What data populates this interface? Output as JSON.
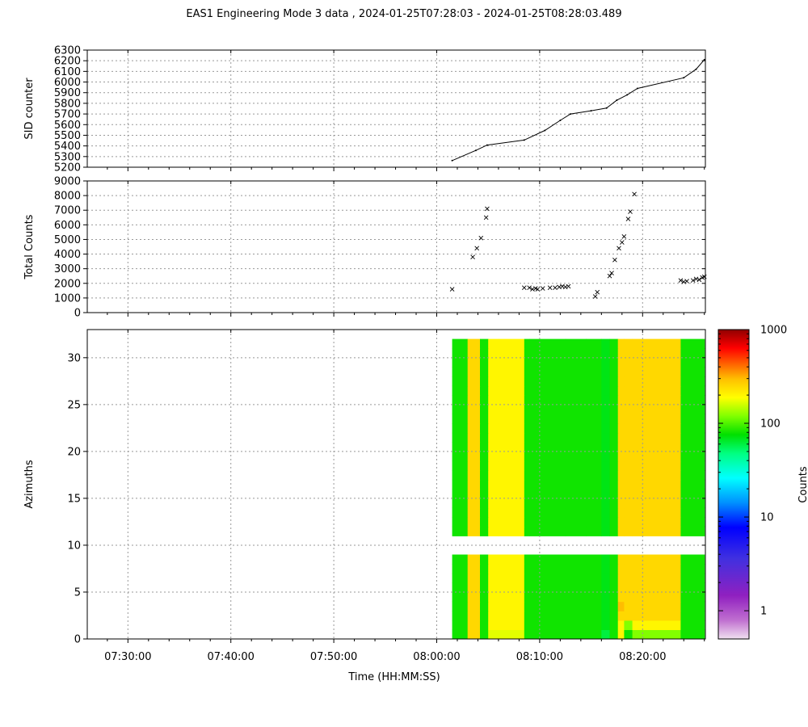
{
  "title": "EAS1  Engineering Mode 3 data ,  2024-01-25T07:28:03 - 2024-01-25T08:28:03.489",
  "xlabel": "Time (HH:MM:SS)",
  "x_ticks": [
    "07:30:00",
    "07:40:00",
    "07:50:00",
    "08:00:00",
    "08:10:00",
    "08:20:00"
  ],
  "colors": {
    "line": "#000000",
    "grid": "#999999",
    "no_data": "#ffffff"
  },
  "colorbar": {
    "label": "Counts",
    "scale": "log",
    "range": [
      0.5,
      1000
    ],
    "tick_labels": [
      "1",
      "10",
      "100",
      "1000"
    ],
    "tick_values": [
      1,
      10,
      100,
      1000
    ],
    "stops": [
      [
        "#f0e0f0",
        0.0
      ],
      [
        "#c070d0",
        0.06
      ],
      [
        "#9020c0",
        0.14
      ],
      [
        "#4030e0",
        0.26
      ],
      [
        "#0000ff",
        0.36
      ],
      [
        "#0090ff",
        0.44
      ],
      [
        "#00ffff",
        0.52
      ],
      [
        "#00ff80",
        0.6
      ],
      [
        "#00e000",
        0.66
      ],
      [
        "#80ff00",
        0.72
      ],
      [
        "#ffff00",
        0.78
      ],
      [
        "#ffc000",
        0.84
      ],
      [
        "#ff6000",
        0.89
      ],
      [
        "#ff0000",
        0.94
      ],
      [
        "#900000",
        1.0
      ]
    ]
  },
  "chart_data": [
    {
      "type": "line",
      "ylabel": "SID counter",
      "ylim": [
        5200,
        6300
      ],
      "xlim_minutes": [
        -1.95,
        58.1
      ],
      "y_ticks": [
        5200,
        5300,
        5400,
        5500,
        5600,
        5700,
        5800,
        5900,
        6000,
        6100,
        6200,
        6300
      ],
      "grid": true,
      "x_minutes": [
        33.5,
        35.8,
        36.9,
        40.5,
        42.5,
        44.0,
        45.0,
        47.0,
        48.5,
        49.5,
        50.5,
        51.5,
        56.0,
        57.2,
        58.0
      ],
      "values": [
        5262,
        5358,
        5408,
        5455,
        5545,
        5640,
        5700,
        5730,
        5755,
        5830,
        5880,
        5940,
        6040,
        6120,
        6210
      ]
    },
    {
      "type": "scatter",
      "ylabel": "Total Counts",
      "ylim": [
        0,
        9000
      ],
      "xlim_minutes": [
        -1.95,
        58.1
      ],
      "y_ticks": [
        0,
        1000,
        2000,
        3000,
        4000,
        5000,
        6000,
        7000,
        8000,
        9000
      ],
      "grid": true,
      "marker": "x",
      "x_minutes": [
        33.5,
        35.5,
        35.9,
        36.3,
        36.8,
        36.9,
        40.5,
        41.0,
        41.3,
        41.6,
        41.8,
        42.3,
        43.0,
        43.5,
        43.9,
        44.2,
        44.5,
        44.8,
        47.4,
        47.6,
        48.8,
        49.0,
        49.3,
        49.7,
        50.0,
        50.2,
        50.6,
        50.8,
        51.2,
        55.7,
        56.0,
        56.3,
        56.9,
        57.2,
        57.5,
        57.8,
        58.0
      ],
      "values": [
        1600,
        3800,
        4400,
        5100,
        6500,
        7100,
        1700,
        1700,
        1600,
        1650,
        1600,
        1650,
        1700,
        1700,
        1750,
        1800,
        1750,
        1800,
        1100,
        1400,
        2500,
        2700,
        3600,
        4400,
        4800,
        5200,
        6400,
        6900,
        8100,
        2200,
        2100,
        2150,
        2200,
        2300,
        2250,
        2400,
        2450
      ]
    },
    {
      "type": "heatmap",
      "ylabel": "Azimuths",
      "ylim": [
        0,
        33
      ],
      "xlim_minutes": [
        -1.95,
        58.1
      ],
      "y_ticks": [
        0,
        5,
        10,
        15,
        20,
        25,
        30
      ],
      "grid": true,
      "data_start_minute": 33.5,
      "data_end_minute": 58.0,
      "missing_azimuths": [
        9,
        10
      ],
      "color_scale": "log",
      "time_bins_minutes": [
        33.5,
        35.0,
        36.2,
        37.0,
        38.0,
        40.5,
        41.0,
        44.5,
        46.5,
        48.0,
        48.8,
        49.6,
        50.2,
        51.0,
        55.7,
        58.0
      ],
      "counts": [
        [
          80,
          250,
          80,
          170,
          170,
          80,
          80,
          80,
          80,
          60,
          80,
          200,
          80,
          120,
          80
        ],
        [
          80,
          250,
          80,
          200,
          200,
          80,
          80,
          80,
          80,
          70,
          80,
          200,
          120,
          200,
          80
        ],
        [
          80,
          250,
          80,
          200,
          200,
          80,
          80,
          80,
          80,
          70,
          80,
          250,
          250,
          250,
          80
        ],
        [
          80,
          250,
          80,
          200,
          200,
          80,
          80,
          80,
          80,
          70,
          80,
          300,
          250,
          250,
          80
        ],
        [
          80,
          250,
          80,
          200,
          200,
          80,
          80,
          80,
          80,
          70,
          80,
          250,
          250,
          250,
          80
        ],
        [
          80,
          250,
          80,
          200,
          200,
          80,
          80,
          80,
          80,
          70,
          80,
          250,
          250,
          250,
          80
        ],
        [
          80,
          250,
          80,
          200,
          200,
          80,
          80,
          80,
          80,
          70,
          80,
          250,
          250,
          250,
          80
        ],
        [
          80,
          250,
          80,
          200,
          200,
          80,
          80,
          80,
          80,
          70,
          80,
          250,
          250,
          250,
          80
        ],
        [
          80,
          250,
          80,
          200,
          200,
          80,
          80,
          80,
          80,
          70,
          80,
          250,
          250,
          250,
          80
        ],
        [
          80,
          250,
          80,
          200,
          200,
          80,
          80,
          80,
          80,
          70,
          80,
          250,
          250,
          250,
          80
        ],
        [
          80,
          250,
          80,
          200,
          200,
          80,
          80,
          80,
          80,
          70,
          80,
          250,
          250,
          250,
          80
        ],
        [
          80,
          250,
          80,
          200,
          200,
          80,
          80,
          80,
          80,
          70,
          80,
          250,
          250,
          250,
          80
        ],
        [
          80,
          250,
          80,
          200,
          200,
          80,
          80,
          80,
          80,
          70,
          80,
          250,
          250,
          250,
          80
        ],
        [
          80,
          250,
          80,
          200,
          200,
          80,
          80,
          80,
          80,
          70,
          80,
          250,
          250,
          250,
          80
        ],
        [
          80,
          250,
          80,
          200,
          200,
          80,
          80,
          80,
          80,
          70,
          80,
          250,
          250,
          250,
          80
        ],
        [
          80,
          250,
          80,
          200,
          200,
          80,
          80,
          80,
          80,
          70,
          80,
          250,
          250,
          250,
          80
        ],
        [
          80,
          250,
          80,
          200,
          200,
          80,
          80,
          80,
          80,
          70,
          80,
          250,
          250,
          250,
          80
        ],
        [
          80,
          250,
          80,
          200,
          200,
          80,
          80,
          80,
          80,
          70,
          80,
          250,
          250,
          250,
          80
        ],
        [
          80,
          250,
          80,
          200,
          200,
          80,
          80,
          80,
          80,
          70,
          80,
          250,
          250,
          250,
          80
        ],
        [
          80,
          250,
          80,
          200,
          200,
          80,
          80,
          80,
          80,
          70,
          80,
          250,
          250,
          250,
          80
        ],
        [
          80,
          250,
          80,
          200,
          200,
          80,
          80,
          80,
          80,
          70,
          80,
          250,
          250,
          250,
          80
        ],
        [
          80,
          250,
          80,
          200,
          200,
          80,
          80,
          80,
          80,
          70,
          80,
          250,
          250,
          250,
          80
        ],
        [
          80,
          250,
          80,
          200,
          200,
          80,
          80,
          80,
          80,
          70,
          80,
          250,
          250,
          250,
          80
        ],
        [
          80,
          250,
          80,
          200,
          200,
          80,
          80,
          80,
          80,
          70,
          80,
          250,
          250,
          250,
          80
        ],
        [
          80,
          250,
          80,
          200,
          200,
          80,
          80,
          80,
          80,
          70,
          80,
          250,
          250,
          250,
          80
        ],
        [
          80,
          250,
          80,
          200,
          200,
          80,
          80,
          80,
          80,
          70,
          80,
          250,
          250,
          250,
          80
        ],
        [
          80,
          250,
          80,
          200,
          200,
          80,
          80,
          80,
          80,
          70,
          80,
          250,
          250,
          250,
          80
        ],
        [
          80,
          250,
          80,
          200,
          200,
          80,
          80,
          80,
          80,
          70,
          80,
          250,
          250,
          250,
          80
        ],
        [
          80,
          250,
          80,
          200,
          200,
          80,
          80,
          80,
          80,
          70,
          80,
          250,
          250,
          250,
          80
        ],
        [
          80,
          250,
          80,
          200,
          200,
          80,
          80,
          80,
          80,
          70,
          80,
          250,
          250,
          250,
          80
        ],
        [
          80,
          250,
          80,
          200,
          200,
          80,
          80,
          80,
          80,
          70,
          80,
          250,
          250,
          250,
          80
        ],
        [
          80,
          250,
          80,
          200,
          200,
          80,
          80,
          80,
          80,
          70,
          80,
          250,
          250,
          250,
          80
        ]
      ]
    }
  ]
}
